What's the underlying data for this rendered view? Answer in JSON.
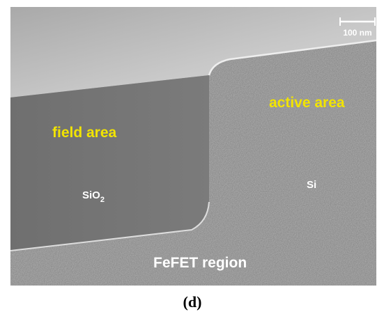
{
  "image": {
    "scale_bar": "100 nm",
    "labels": {
      "active": "active area",
      "field": "field area",
      "oxide": {
        "text": "SiO",
        "subscript": "2"
      },
      "silicon": "Si",
      "region": "FeFET region"
    }
  },
  "caption": "(d)"
}
